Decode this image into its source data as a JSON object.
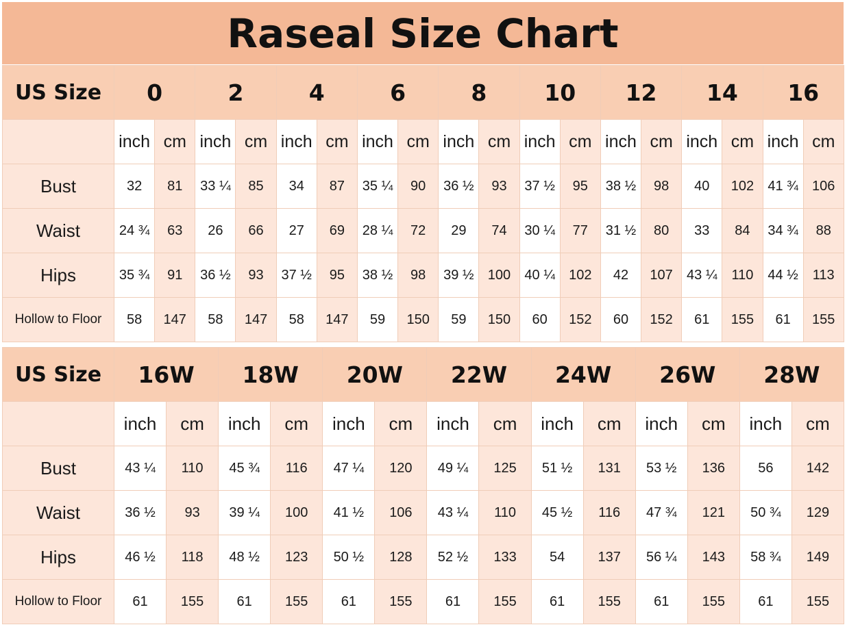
{
  "title": "Raseal Size Chart",
  "header_label": "US Size",
  "unit_labels": {
    "inch": "inch",
    "cm": "cm"
  },
  "row_labels": [
    "Bust",
    "Waist",
    "Hips",
    "Hollow to Floor"
  ],
  "table1": {
    "sizes": [
      "0",
      "2",
      "4",
      "6",
      "8",
      "10",
      "12",
      "14",
      "16"
    ],
    "rows": [
      {
        "label": "Bust",
        "values": [
          [
            "32",
            "81"
          ],
          [
            "33 ¼",
            "85"
          ],
          [
            "34",
            "87"
          ],
          [
            "35 ¼",
            "90"
          ],
          [
            "36 ½",
            "93"
          ],
          [
            "37 ½",
            "95"
          ],
          [
            "38 ½",
            "98"
          ],
          [
            "40",
            "102"
          ],
          [
            "41 ¾",
            "106"
          ]
        ]
      },
      {
        "label": "Waist",
        "values": [
          [
            "24 ¾",
            "63"
          ],
          [
            "26",
            "66"
          ],
          [
            "27",
            "69"
          ],
          [
            "28 ¼",
            "72"
          ],
          [
            "29",
            "74"
          ],
          [
            "30 ¼",
            "77"
          ],
          [
            "31 ½",
            "80"
          ],
          [
            "33",
            "84"
          ],
          [
            "34 ¾",
            "88"
          ]
        ]
      },
      {
        "label": "Hips",
        "values": [
          [
            "35 ¾",
            "91"
          ],
          [
            "36 ½",
            "93"
          ],
          [
            "37 ½",
            "95"
          ],
          [
            "38 ½",
            "98"
          ],
          [
            "39 ½",
            "100"
          ],
          [
            "40 ¼",
            "102"
          ],
          [
            "42",
            "107"
          ],
          [
            "43 ¼",
            "110"
          ],
          [
            "44 ½",
            "113"
          ]
        ]
      },
      {
        "label": "Hollow to Floor",
        "values": [
          [
            "58",
            "147"
          ],
          [
            "58",
            "147"
          ],
          [
            "58",
            "147"
          ],
          [
            "59",
            "150"
          ],
          [
            "59",
            "150"
          ],
          [
            "60",
            "152"
          ],
          [
            "60",
            "152"
          ],
          [
            "61",
            "155"
          ],
          [
            "61",
            "155"
          ]
        ]
      }
    ]
  },
  "table2": {
    "sizes": [
      "16W",
      "18W",
      "20W",
      "22W",
      "24W",
      "26W",
      "28W"
    ],
    "rows": [
      {
        "label": "Bust",
        "values": [
          [
            "43 ¼",
            "110"
          ],
          [
            "45 ¾",
            "116"
          ],
          [
            "47 ¼",
            "120"
          ],
          [
            "49 ¼",
            "125"
          ],
          [
            "51 ½",
            "131"
          ],
          [
            "53 ½",
            "136"
          ],
          [
            "56",
            "142"
          ]
        ]
      },
      {
        "label": "Waist",
        "values": [
          [
            "36 ½",
            "93"
          ],
          [
            "39 ¼",
            "100"
          ],
          [
            "41 ½",
            "106"
          ],
          [
            "43 ¼",
            "110"
          ],
          [
            "45 ½",
            "116"
          ],
          [
            "47 ¾",
            "121"
          ],
          [
            "50 ¾",
            "129"
          ]
        ]
      },
      {
        "label": "Hips",
        "values": [
          [
            "46 ½",
            "118"
          ],
          [
            "48 ½",
            "123"
          ],
          [
            "50 ½",
            "128"
          ],
          [
            "52 ½",
            "133"
          ],
          [
            "54",
            "137"
          ],
          [
            "56 ¼",
            "143"
          ],
          [
            "58 ¾",
            "149"
          ]
        ]
      },
      {
        "label": "Hollow to Floor",
        "values": [
          [
            "61",
            "155"
          ],
          [
            "61",
            "155"
          ],
          [
            "61",
            "155"
          ],
          [
            "61",
            "155"
          ],
          [
            "61",
            "155"
          ],
          [
            "61",
            "155"
          ],
          [
            "61",
            "155"
          ]
        ]
      }
    ]
  },
  "colors": {
    "title_bg": "#f4b896",
    "header_bg": "#f9ceb3",
    "cm_bg": "#fde6da",
    "inch_bg": "#ffffff",
    "border": "#f0cdb8"
  }
}
